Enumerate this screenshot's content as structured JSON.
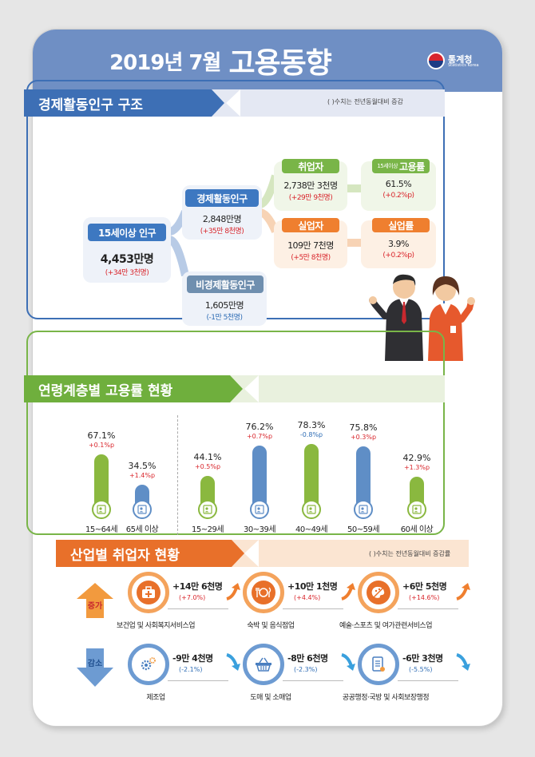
{
  "header": {
    "title_small": "2019년 7월",
    "title_big": "고용동향",
    "logo_name": "통계청",
    "logo_sub": "Statistics Korea"
  },
  "structure": {
    "heading": "경제활동인구 구조",
    "note": "( )수치는 전년동월대비 증감",
    "population": {
      "label": "15세이상 인구",
      "value": "4,453만명",
      "change": "(+34만 3천명)"
    },
    "active": {
      "label": "경제활동인구",
      "value": "2,848만명",
      "change": "(+35만 8천명)"
    },
    "inactive": {
      "label": "비경제활동인구",
      "value": "1,605만명",
      "change": "(-1만 5천명)"
    },
    "employed": {
      "label": "취업자",
      "value": "2,738만 3천명",
      "change": "(+29만 9천명)"
    },
    "employment_rate": {
      "label_small": "15세이상",
      "label": "고용률",
      "value": "61.5%",
      "change": "(+0.2%p)"
    },
    "unemployed": {
      "label": "실업자",
      "value": "109만 7천명",
      "change": "(+5만 8천명)"
    },
    "unemployment_rate": {
      "label": "실업률",
      "value": "3.9%",
      "change": "(+0.2%p)"
    }
  },
  "age": {
    "heading": "연령계층별 고용률 현황",
    "groups": [
      {
        "label": "15~64세",
        "value": 67.1,
        "value_text": "67.1%",
        "change": "+0.1%p",
        "dir": "up",
        "color": "#8ab83f"
      },
      {
        "label": "65세 이상",
        "value": 34.5,
        "value_text": "34.5%",
        "change": "+1.4%p",
        "dir": "up",
        "color": "#5f8ec6"
      },
      {
        "label": "15~29세",
        "value": 44.1,
        "value_text": "44.1%",
        "change": "+0.5%p",
        "dir": "up",
        "color": "#8ab83f"
      },
      {
        "label": "30~39세",
        "value": 76.2,
        "value_text": "76.2%",
        "change": "+0.7%p",
        "dir": "up",
        "color": "#5f8ec6"
      },
      {
        "label": "40~49세",
        "value": 78.3,
        "value_text": "78.3%",
        "change": "-0.8%p",
        "dir": "down",
        "color": "#8ab83f"
      },
      {
        "label": "50~59세",
        "value": 75.8,
        "value_text": "75.8%",
        "change": "+0.3%p",
        "dir": "up",
        "color": "#5f8ec6"
      },
      {
        "label": "60세 이상",
        "value": 42.9,
        "value_text": "42.9%",
        "change": "+1.3%p",
        "dir": "up",
        "color": "#8ab83f"
      }
    ]
  },
  "industry": {
    "heading": "산업별 취업자 현황",
    "note": "( )수치는 전년동월대비 증감률",
    "increase_label": "증가",
    "decrease_label": "감소",
    "increase": [
      {
        "value": "+14만 6천명",
        "change": "(+7.0%)",
        "name": "보건업 및 사회복지서비스업",
        "icon": "first-aid-kit-icon"
      },
      {
        "value": "+10만 1천명",
        "change": "(+4.4%)",
        "name": "숙박 및 음식점업",
        "icon": "dining-icon"
      },
      {
        "value": "+6만 5천명",
        "change": "(+14.6%)",
        "name": "예술·스포츠 및 여가관련서비스업",
        "icon": "art-palette-icon"
      }
    ],
    "decrease": [
      {
        "value": "-9만 4천명",
        "change": "(-2.1%)",
        "name": "제조업",
        "icon": "gear-icon"
      },
      {
        "value": "-8만 6천명",
        "change": "(-2.3%)",
        "name": "도매 및 소매업",
        "icon": "shopping-basket-icon"
      },
      {
        "value": "-6만 3천명",
        "change": "(-5.5%)",
        "name": "공공행정·국방 및 사회보장행정",
        "icon": "document-icon"
      }
    ]
  }
}
